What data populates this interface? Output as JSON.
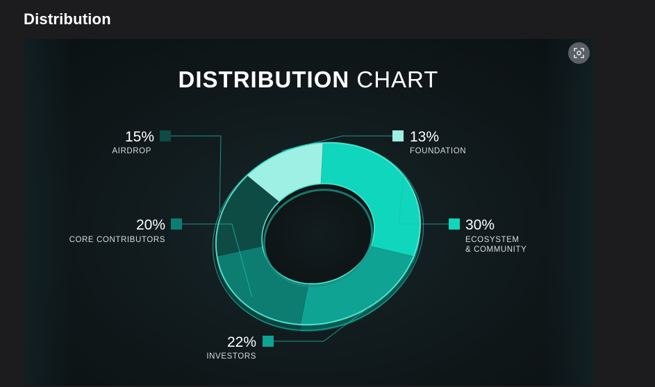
{
  "page": {
    "section_title": "Distribution"
  },
  "icons": {
    "lens": "google-lens-icon"
  },
  "colors": {
    "airdrop": "#0f4b45",
    "foundation": "#9ff0e4",
    "ecosystem": "#0fd6bd",
    "investors": "#0ea393",
    "core_contributors": "#0d7d72",
    "connector": "#1fbfaa"
  },
  "chart_data": {
    "type": "pie",
    "title": "DISTRIBUTION",
    "subtitle": "CHART",
    "slices": [
      {
        "key": "foundation",
        "value": 13,
        "percent_label": "13%",
        "label_lines": [
          "FOUNDATION"
        ]
      },
      {
        "key": "ecosystem",
        "value": 30,
        "percent_label": "30%",
        "label_lines": [
          "ECOSYSTEM",
          "& COMMUNITY"
        ]
      },
      {
        "key": "investors",
        "value": 22,
        "percent_label": "22%",
        "label_lines": [
          "INVESTORS"
        ]
      },
      {
        "key": "core_contributors",
        "value": 20,
        "percent_label": "20%",
        "label_lines": [
          "CORE CONTRIBUTORS"
        ]
      },
      {
        "key": "airdrop",
        "value": 15,
        "percent_label": "15%",
        "label_lines": [
          "AIRDROP"
        ]
      }
    ]
  }
}
